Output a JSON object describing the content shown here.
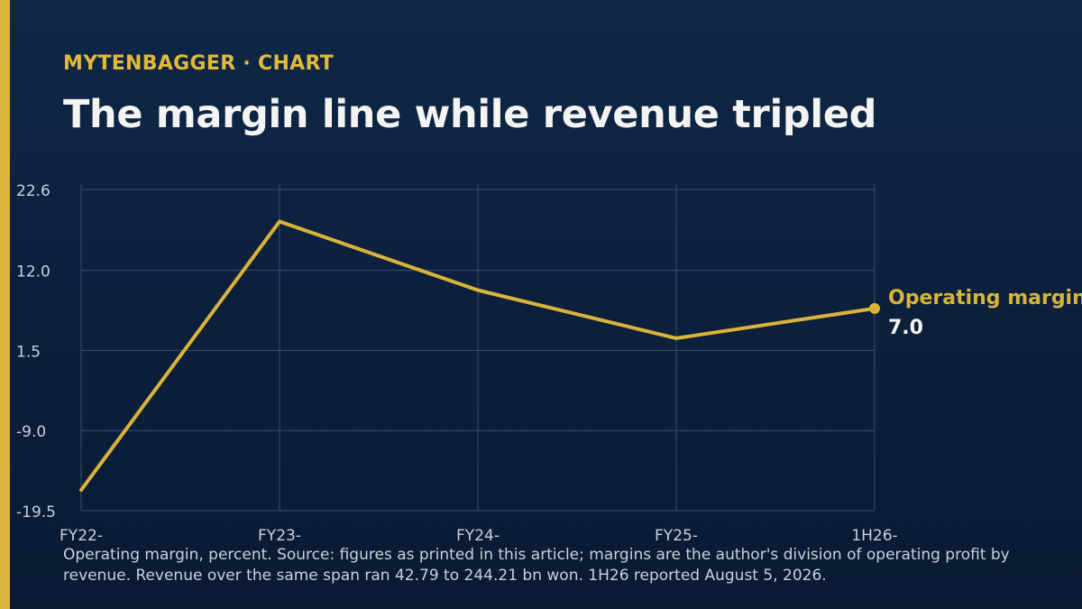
{
  "header": {
    "kicker": "MYTENBAGGER · CHART",
    "title": "The margin line while revenue tripled"
  },
  "colors": {
    "accent": "#d9b43a",
    "series": "#d9b43a",
    "grid": "#3a4f6b",
    "tick_text": "#c8d1de",
    "value_label": "#f4f4f2"
  },
  "chart_data": {
    "type": "line",
    "categories": [
      "FY22-",
      "FY23-",
      "FY24-",
      "FY25-",
      "1H26-"
    ],
    "series": [
      {
        "name": "Operating margin",
        "values": [
          -16.8,
          18.4,
          9.4,
          3.1,
          7.0
        ]
      }
    ],
    "y_ticks": [
      "22.6",
      "12.0",
      "1.5",
      "-9.0",
      "-19.5"
    ],
    "ylim": [
      -19.5,
      22.6
    ],
    "end_label": {
      "series": "Operating margin",
      "value": "7.0"
    },
    "grid": true,
    "legend": "direct label at line end"
  },
  "footnote": "Operating margin, percent. Source: figures as printed in this article; margins are the author's division of operating profit by revenue. Revenue over the same span ran 42.79 to 244.21 bn won. 1H26 reported August 5, 2026."
}
